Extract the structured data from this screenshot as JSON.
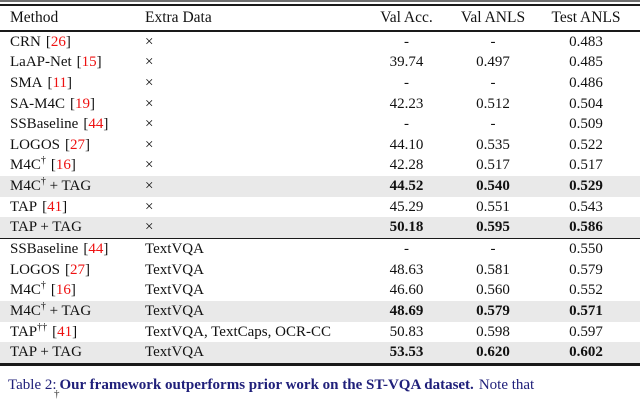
{
  "colors": {
    "citation_red": "#ee1111",
    "caption_navy": "#20207a",
    "highlight_gray": "#e9e9e9"
  },
  "table": {
    "columns": [
      "Method",
      "Extra Data",
      "Val Acc.",
      "Val ANLS",
      "Test ANLS"
    ],
    "sections": [
      {
        "rows": [
          {
            "method": "CRN",
            "sup": "",
            "suffix": "",
            "lb": "[",
            "cite": "26",
            "rb": "]",
            "extra": "×",
            "val_acc": "-",
            "val_anls": "-",
            "test_anls": "0.483",
            "highlight": false
          },
          {
            "method": "LaAP-Net",
            "sup": "",
            "suffix": "",
            "lb": "[",
            "cite": "15",
            "rb": "]",
            "extra": "×",
            "val_acc": "39.74",
            "val_anls": "0.497",
            "test_anls": "0.485",
            "highlight": false
          },
          {
            "method": "SMA",
            "sup": "",
            "suffix": "",
            "lb": "[",
            "cite": "11",
            "rb": "]",
            "extra": "×",
            "val_acc": "-",
            "val_anls": "-",
            "test_anls": "0.486",
            "highlight": false
          },
          {
            "method": "SA-M4C",
            "sup": "",
            "suffix": "",
            "lb": "[",
            "cite": "19",
            "rb": "]",
            "extra": "×",
            "val_acc": "42.23",
            "val_anls": "0.512",
            "test_anls": "0.504",
            "highlight": false
          },
          {
            "method": "SSBaseline",
            "sup": "",
            "suffix": "",
            "lb": "[",
            "cite": "44",
            "rb": "]",
            "extra": "×",
            "val_acc": "-",
            "val_anls": "-",
            "test_anls": "0.509",
            "highlight": false
          },
          {
            "method": "LOGOS",
            "sup": "",
            "suffix": "",
            "lb": "[",
            "cite": "27",
            "rb": "]",
            "extra": "×",
            "val_acc": "44.10",
            "val_anls": "0.535",
            "test_anls": "0.522",
            "highlight": false
          },
          {
            "method": "M4C",
            "sup": "†",
            "suffix": "",
            "lb": "[",
            "cite": "16",
            "rb": "]",
            "extra": "×",
            "val_acc": "42.28",
            "val_anls": "0.517",
            "test_anls": "0.517",
            "highlight": false
          },
          {
            "method": "M4C",
            "sup": "†",
            "suffix": " + TAG",
            "lb": "",
            "cite": "",
            "rb": "",
            "extra": "×",
            "val_acc": "44.52",
            "val_anls": "0.540",
            "test_anls": "0.529",
            "highlight": true
          },
          {
            "method": "TAP",
            "sup": "",
            "suffix": "",
            "lb": "[",
            "cite": "41",
            "rb": "]",
            "extra": "×",
            "val_acc": "45.29",
            "val_anls": "0.551",
            "test_anls": "0.543",
            "highlight": false
          },
          {
            "method": "TAP",
            "sup": "",
            "suffix": " + TAG",
            "lb": "",
            "cite": "",
            "rb": "",
            "extra": "×",
            "val_acc": "50.18",
            "val_anls": "0.595",
            "test_anls": "0.586",
            "highlight": true
          }
        ]
      },
      {
        "rows": [
          {
            "method": "SSBaseline",
            "sup": "",
            "suffix": "",
            "lb": "[",
            "cite": "44",
            "rb": "]",
            "extra": "TextVQA",
            "val_acc": "-",
            "val_anls": "-",
            "test_anls": "0.550",
            "highlight": false
          },
          {
            "method": "LOGOS",
            "sup": "",
            "suffix": "",
            "lb": "[",
            "cite": "27",
            "rb": "]",
            "extra": "TextVQA",
            "val_acc": "48.63",
            "val_anls": "0.581",
            "test_anls": "0.579",
            "highlight": false
          },
          {
            "method": "M4C",
            "sup": "†",
            "suffix": "",
            "lb": "[",
            "cite": "16",
            "rb": "]",
            "extra": "TextVQA",
            "val_acc": "46.60",
            "val_anls": "0.560",
            "test_anls": "0.552",
            "highlight": false
          },
          {
            "method": "M4C",
            "sup": "†",
            "suffix": " + TAG",
            "lb": "",
            "cite": "",
            "rb": "",
            "extra": "TextVQA",
            "val_acc": "48.69",
            "val_anls": "0.579",
            "test_anls": "0.571",
            "highlight": true
          },
          {
            "method": "TAP",
            "sup": "††",
            "suffix": "",
            "lb": "[",
            "cite": "41",
            "rb": "]",
            "extra": "TextVQA, TextCaps, OCR-CC",
            "val_acc": "50.83",
            "val_anls": "0.598",
            "test_anls": "0.597",
            "highlight": false
          },
          {
            "method": "TAP",
            "sup": "",
            "suffix": " + TAG",
            "lb": "",
            "cite": "",
            "rb": "",
            "extra": "TextVQA",
            "val_acc": "53.53",
            "val_anls": "0.620",
            "test_anls": "0.602",
            "highlight": true
          }
        ]
      }
    ]
  },
  "caption": {
    "prefix": "Table 2:",
    "bold": "Our framework outperforms prior work on the ST-VQA dataset.",
    "suffix": "Note that",
    "footnote_marker": "†"
  }
}
